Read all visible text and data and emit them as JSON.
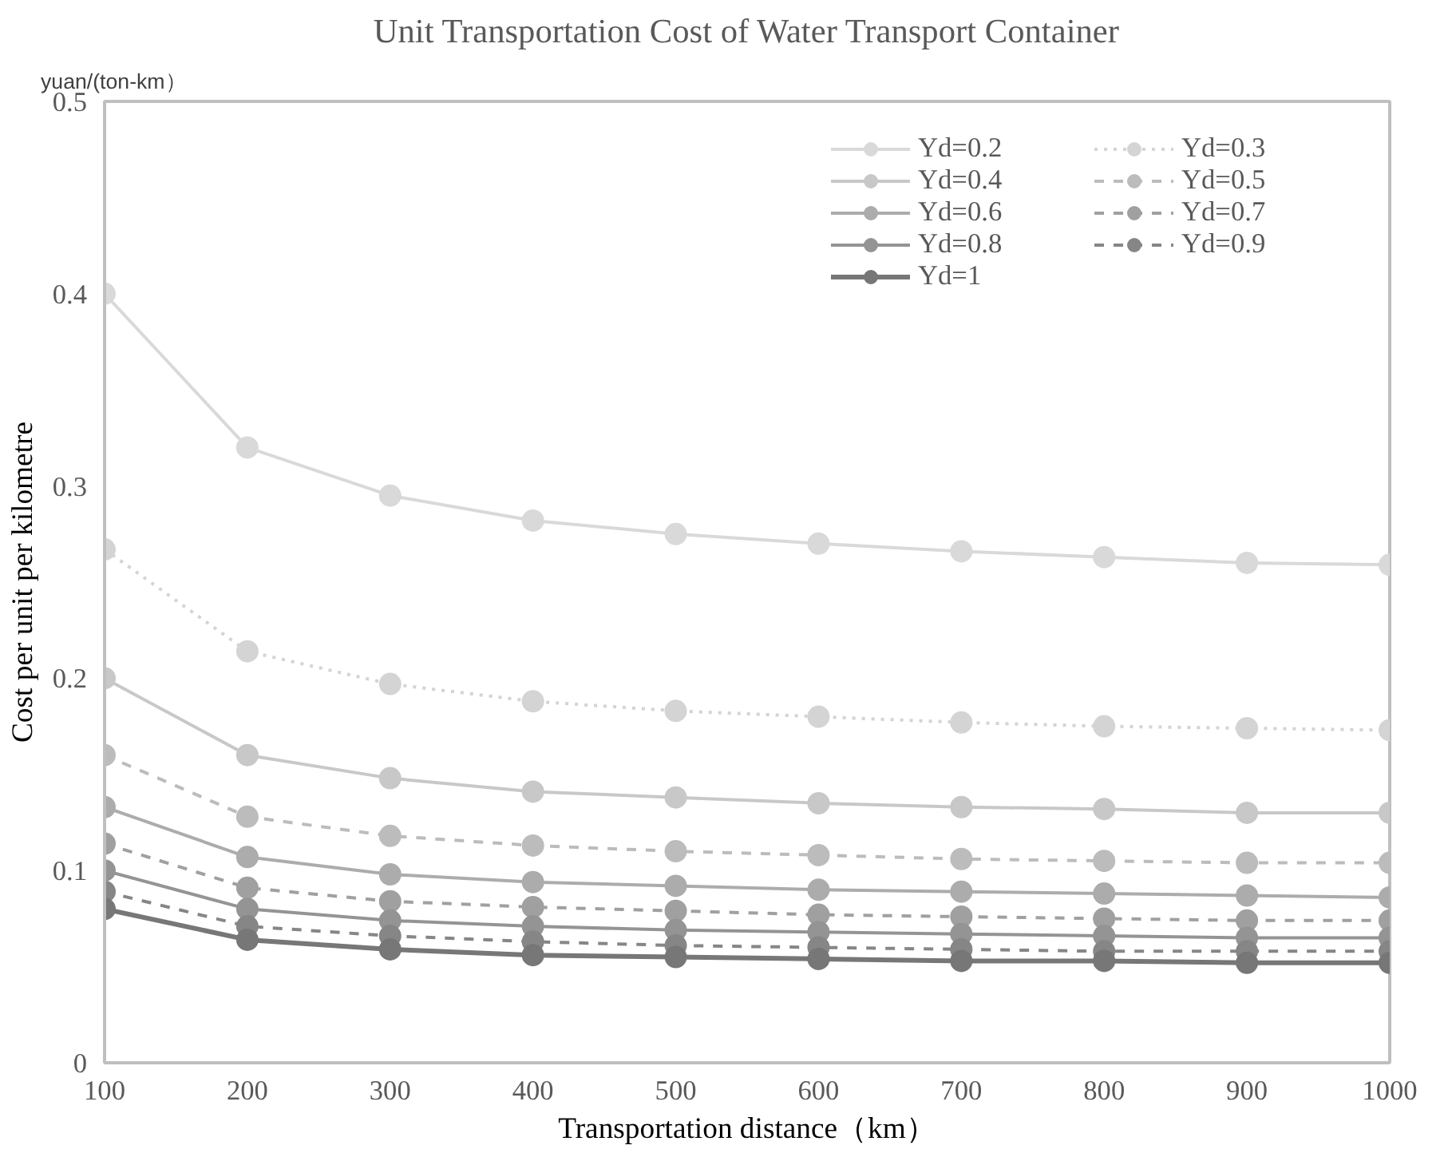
{
  "chart_data": {
    "type": "line",
    "title": "Unit Transportation Cost of Water Transport Container",
    "xlabel": "Transportation distance（km）",
    "ylabel": "Cost per unit per kilometre",
    "annotations": [
      "yuan/(ton-km）"
    ],
    "categories": [
      "100",
      "200",
      "300",
      "400",
      "500",
      "600",
      "700",
      "800",
      "900",
      "1000"
    ],
    "ylim": [
      0,
      0.5
    ],
    "yticks": [
      0,
      0.1,
      0.2,
      0.3,
      0.4,
      0.5
    ],
    "grid": false,
    "legend": "top right",
    "marker": "circle",
    "series": [
      {
        "name": "Yd=0.2",
        "color": "#d9d9d9",
        "line_style": "solid",
        "values": [
          0.4,
          0.32,
          0.295,
          0.282,
          0.275,
          0.27,
          0.266,
          0.263,
          0.26,
          0.259
        ]
      },
      {
        "name": "Yd=0.3",
        "color": "#d4d4d4",
        "line_style": "dotted",
        "values": [
          0.267,
          0.214,
          0.197,
          0.188,
          0.183,
          0.18,
          0.177,
          0.175,
          0.174,
          0.173
        ]
      },
      {
        "name": "Yd=0.4",
        "color": "#c8c8c8",
        "line_style": "solid",
        "values": [
          0.2,
          0.16,
          0.148,
          0.141,
          0.138,
          0.135,
          0.133,
          0.132,
          0.13,
          0.13
        ]
      },
      {
        "name": "Yd=0.5",
        "color": "#bcbcbc",
        "line_style": "dashed",
        "values": [
          0.16,
          0.128,
          0.118,
          0.113,
          0.11,
          0.108,
          0.106,
          0.105,
          0.104,
          0.104
        ]
      },
      {
        "name": "Yd=0.6",
        "color": "#acacac",
        "line_style": "solid",
        "values": [
          0.133,
          0.107,
          0.098,
          0.094,
          0.092,
          0.09,
          0.089,
          0.088,
          0.087,
          0.086
        ]
      },
      {
        "name": "Yd=0.7",
        "color": "#a0a0a0",
        "line_style": "dashed",
        "values": [
          0.114,
          0.091,
          0.084,
          0.081,
          0.079,
          0.077,
          0.076,
          0.075,
          0.074,
          0.074
        ]
      },
      {
        "name": "Yd=0.8",
        "color": "#949494",
        "line_style": "solid",
        "values": [
          0.1,
          0.08,
          0.074,
          0.071,
          0.069,
          0.068,
          0.067,
          0.066,
          0.065,
          0.065
        ]
      },
      {
        "name": "Yd=0.9",
        "color": "#868686",
        "line_style": "dashed",
        "values": [
          0.089,
          0.071,
          0.066,
          0.063,
          0.061,
          0.06,
          0.059,
          0.058,
          0.058,
          0.058
        ]
      },
      {
        "name": "Yd=1",
        "color": "#777777",
        "line_style": "solid",
        "values": [
          0.08,
          0.064,
          0.059,
          0.056,
          0.055,
          0.054,
          0.053,
          0.053,
          0.052,
          0.052
        ]
      }
    ]
  }
}
